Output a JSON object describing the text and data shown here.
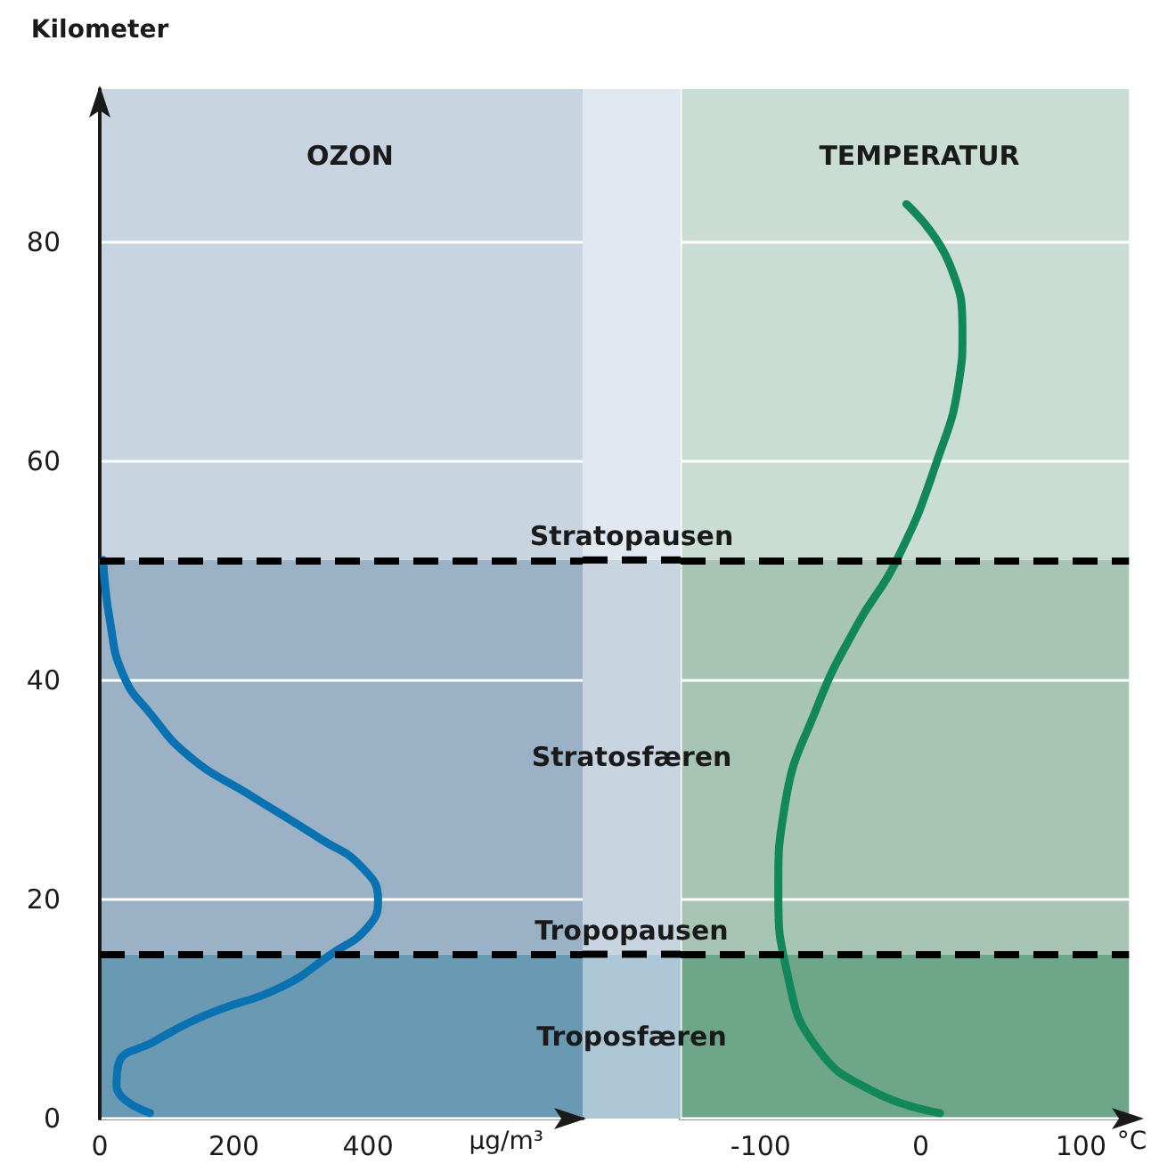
{
  "chart_data": [
    {
      "type": "line",
      "title": "OZON",
      "xlabel": "μg/m³",
      "ylabel": "Kilometer",
      "xlim": [
        0,
        720
      ],
      "xticks": [
        0,
        200,
        400
      ],
      "ylim": [
        0,
        94
      ],
      "yticks": [
        0,
        20,
        40,
        60,
        80
      ],
      "grid": "y",
      "marker": "none",
      "line_style": "solid",
      "series": [
        {
          "color": "#0a72b0",
          "x": [
            75,
            25,
            28,
            80,
            160,
            270,
            345,
            400,
            415,
            390,
            330,
            225,
            135,
            75,
            35,
            15,
            5
          ],
          "values": [
            0.5,
            3,
            5,
            7,
            9.5,
            12,
            15,
            17.5,
            20,
            23,
            25.5,
            29.5,
            33,
            37,
            40.5,
            45.5,
            51
          ]
        }
      ],
      "bands": [
        {
          "axis": "y",
          "from": 0,
          "to": 15,
          "label": "Troposfæren",
          "color": "#6a99b4"
        },
        {
          "axis": "y",
          "from": 15,
          "to": 51,
          "label": "Stratosfæren",
          "color": "#9bb2c6"
        },
        {
          "axis": "y",
          "from": 51,
          "to": 94,
          "color": "#c8d5e1"
        }
      ],
      "ref_lines": [
        {
          "axis": "y",
          "value": 15,
          "label": "Tropopausen",
          "color": "#000000",
          "line_style": "dashed"
        },
        {
          "axis": "y",
          "value": 51,
          "label": "Stratopausen",
          "color": "#000000",
          "line_style": "dashed"
        }
      ]
    },
    {
      "type": "line",
      "title": "TEMPERATUR",
      "xlabel": "°C",
      "xlim": [
        -150,
        130
      ],
      "xticks": [
        -100,
        0,
        100
      ],
      "ylim": [
        0,
        94
      ],
      "yticks": [
        0,
        20,
        40,
        60,
        80
      ],
      "grid": "y",
      "tick_labels": "x",
      "marker": "none",
      "line_style": "solid",
      "series": [
        {
          "color": "#12875a",
          "x": [
            12,
            -30,
            -65,
            -83,
            -89,
            -85,
            -65,
            -40,
            -15,
            10,
            24,
            26,
            18,
            -9
          ],
          "values": [
            0.5,
            2.5,
            6.5,
            13,
            21,
            28.5,
            37.5,
            45,
            51,
            60,
            67.5,
            71.5,
            78,
            83.5
          ]
        }
      ],
      "bands": [
        {
          "axis": "y",
          "from": 0,
          "to": 15,
          "color": "#6ea68a"
        },
        {
          "axis": "y",
          "from": 15,
          "to": 51,
          "color": "#a8c4b4"
        },
        {
          "axis": "y",
          "from": 51,
          "to": 94,
          "color": "#c9ddd5"
        }
      ],
      "ref_lines": [
        {
          "axis": "y",
          "value": 15,
          "color": "#000000",
          "line_style": "dashed"
        },
        {
          "axis": "y",
          "value": 51,
          "color": "#000000",
          "line_style": "dashed"
        }
      ]
    }
  ]
}
